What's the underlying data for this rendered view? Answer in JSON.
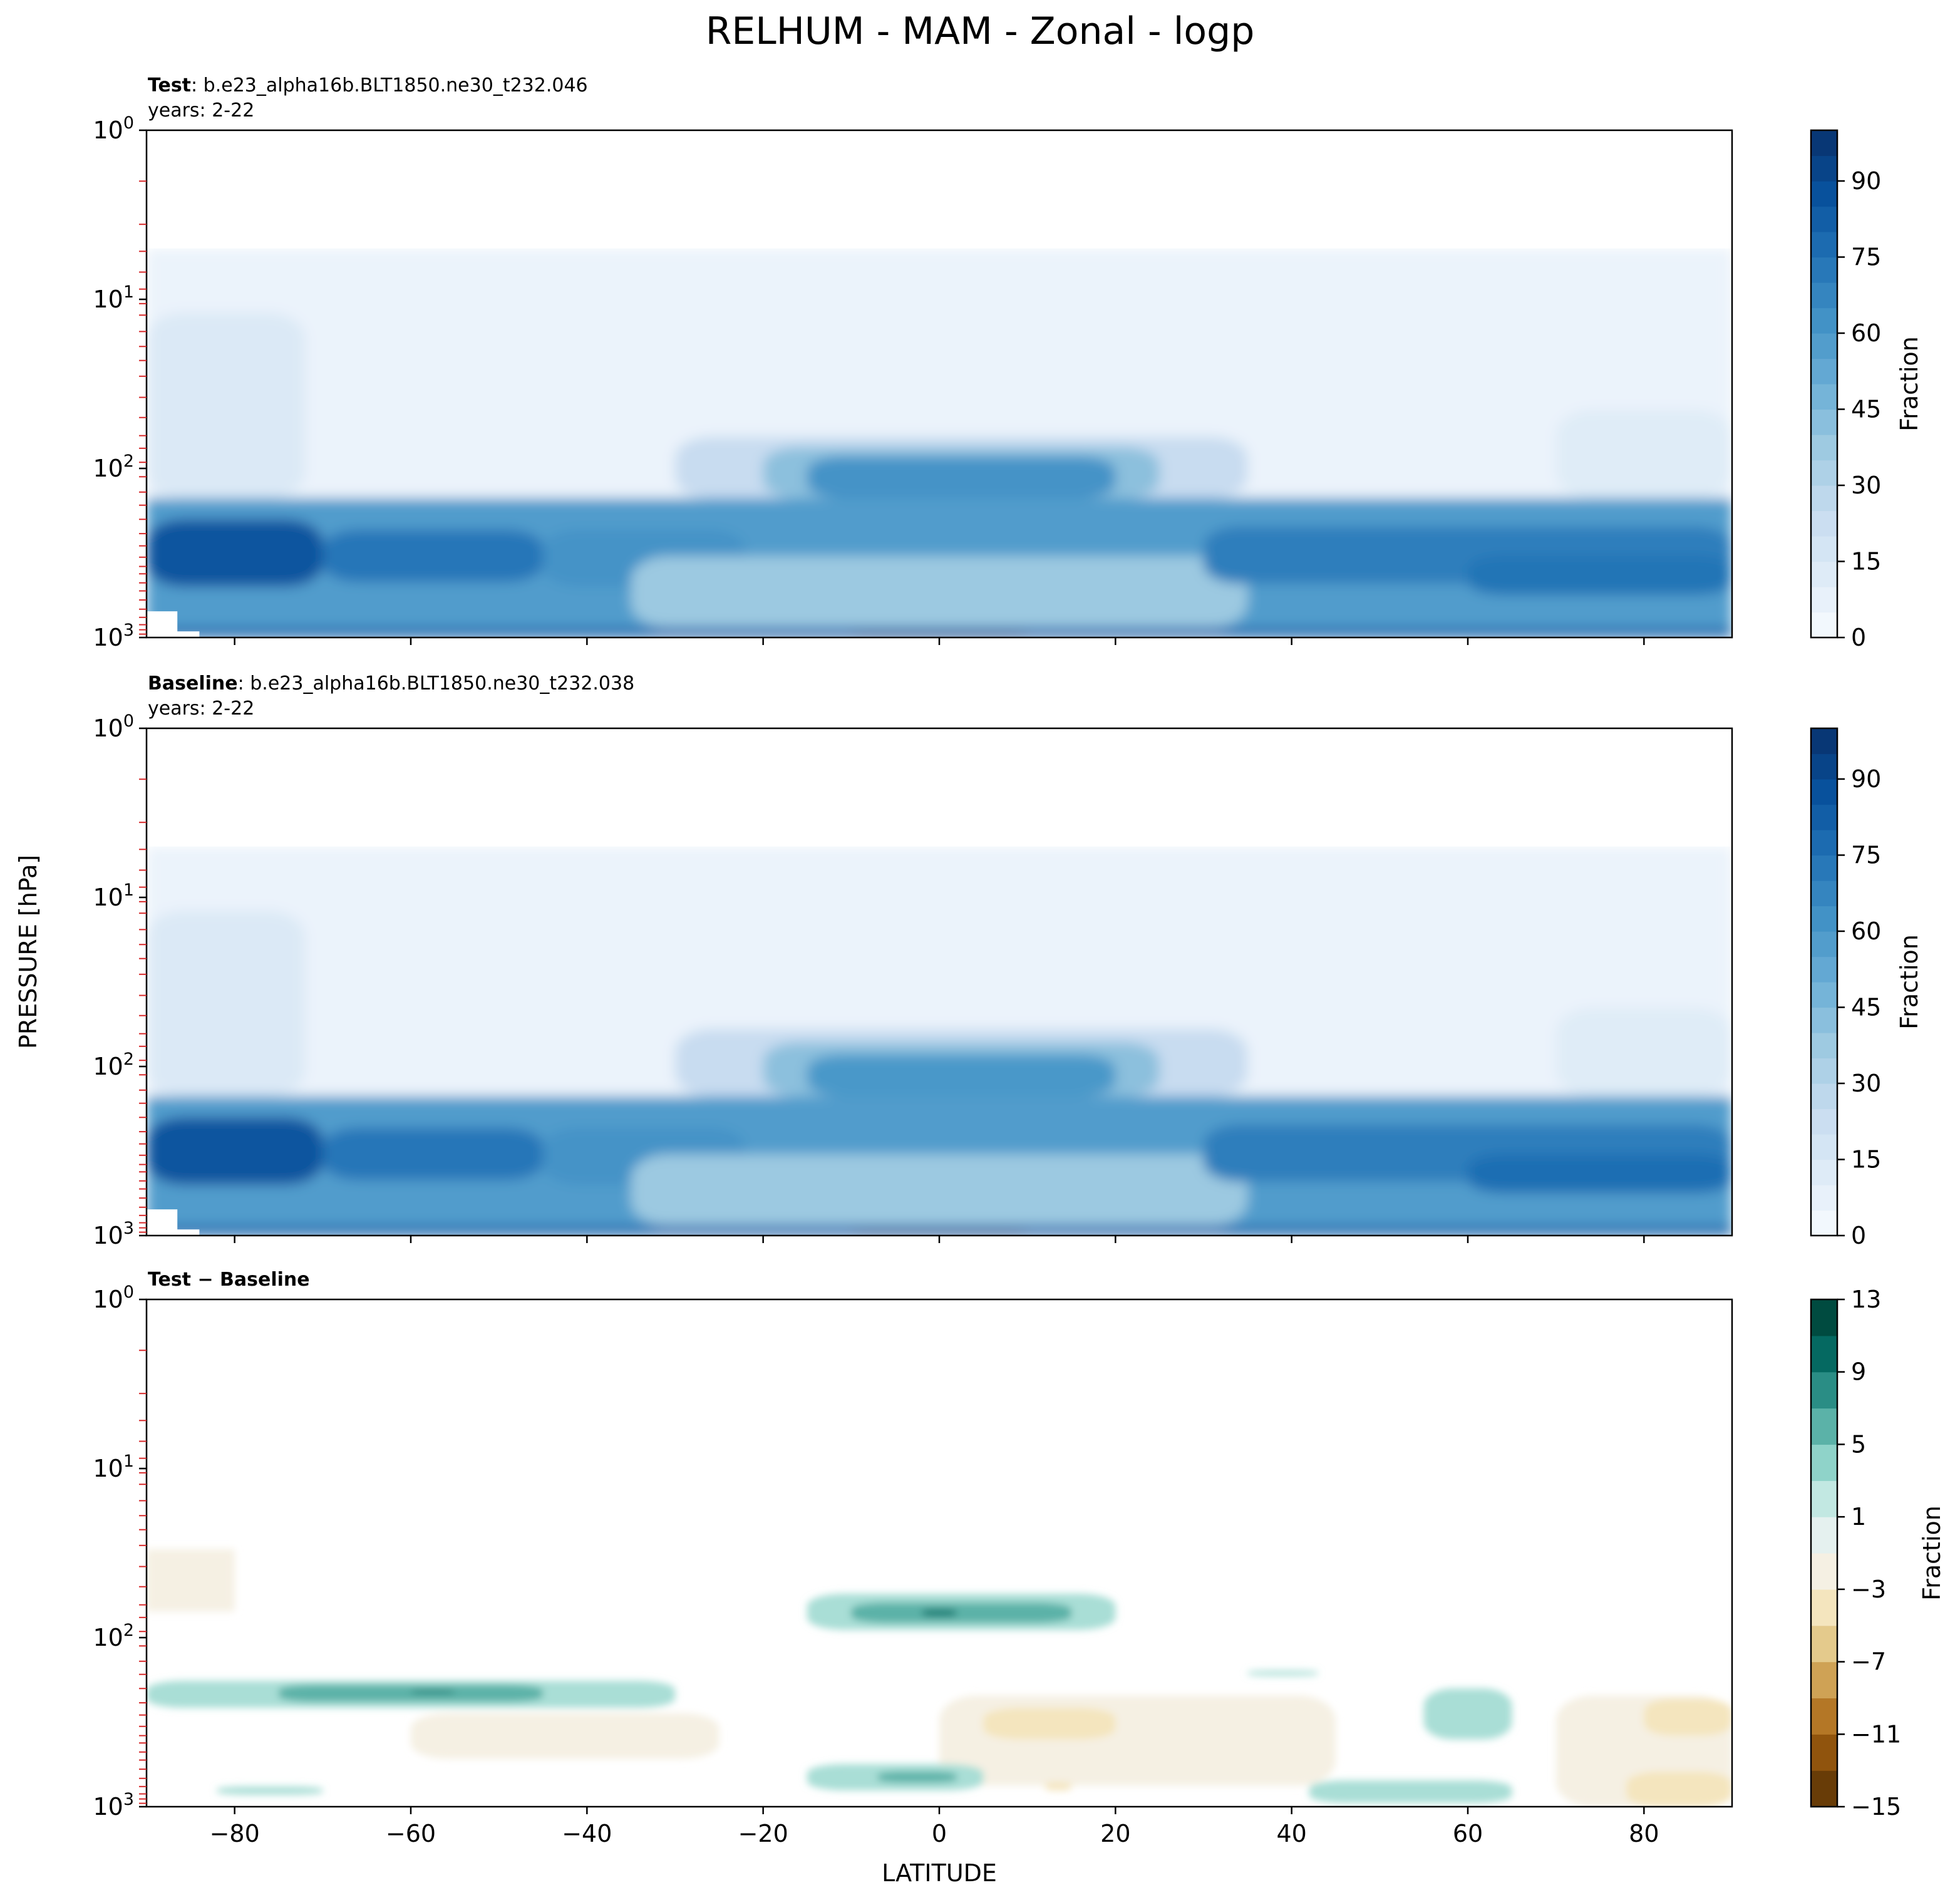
{
  "chart_data": {
    "type": "heatmap",
    "title": "RELHUM - MAM - Zonal - logp",
    "ylabel": "PRESSURE [hPa]",
    "xlabel": "LATITUDE",
    "x_ticks": [
      -80,
      -60,
      -40,
      -20,
      0,
      20,
      40,
      60,
      80
    ],
    "x_tick_labels": [
      "−80",
      "−60",
      "−40",
      "−20",
      "0",
      "20",
      "40",
      "60",
      "80"
    ],
    "xlim": [
      -90,
      90
    ],
    "y_scale": "log",
    "y_inverted": true,
    "ylim": [
      1000,
      1
    ],
    "y_ticks": [
      {
        "base": "10",
        "exp": "0"
      },
      {
        "base": "10",
        "exp": "1"
      },
      {
        "base": "10",
        "exp": "2"
      },
      {
        "base": "10",
        "exp": "3"
      }
    ],
    "level_marks_hpa": [
      2,
      3.6,
      5.2,
      6.9,
      8.7,
      10.6,
      12.4,
      15.5,
      19,
      23,
      28.5,
      38,
      50,
      64,
      76,
      92,
      112,
      138,
      165,
      200,
      243,
      287,
      335,
      380,
      420,
      475,
      530,
      600,
      680,
      760,
      840,
      900,
      955
    ],
    "data_top_hpa": 5,
    "panels": [
      {
        "id": "test",
        "label_bold": "Test",
        "label_rest": ": b.e23_alpha16b.BLT1850.ne30_t232.046",
        "years": "years: 2-22",
        "colormap": "Blues",
        "colorbar": {
          "label": "Fraction",
          "ticks": [
            "0",
            "15",
            "30",
            "45",
            "60",
            "75",
            "90"
          ],
          "min": 0,
          "max": 100,
          "levels": 20
        },
        "fields": [
          {
            "lat": [
              -90,
              90
            ],
            "p": [
              5,
              150
            ],
            "value": 6
          },
          {
            "lat": [
              -90,
              -72
            ],
            "p": [
              12,
              150
            ],
            "value": 14
          },
          {
            "lat": [
              70,
              90
            ],
            "p": [
              45,
              150
            ],
            "value": 12
          },
          {
            "lat": [
              -30,
              35
            ],
            "p": [
              65,
              150
            ],
            "value": 24
          },
          {
            "lat": [
              -20,
              25
            ],
            "p": [
              75,
              150
            ],
            "value": 42
          },
          {
            "lat": [
              -15,
              20
            ],
            "p": [
              85,
              150
            ],
            "value": 62
          },
          {
            "lat": [
              -90,
              90
            ],
            "p": [
              150,
              1000
            ],
            "value": 58
          },
          {
            "lat": [
              -90,
              -70
            ],
            "p": [
              200,
              500
            ],
            "value": 86
          },
          {
            "lat": [
              -70,
              -45
            ],
            "p": [
              230,
              470
            ],
            "value": 73
          },
          {
            "lat": [
              -45,
              -22
            ],
            "p": [
              230,
              500
            ],
            "value": 62
          },
          {
            "lat": [
              -30,
              30
            ],
            "p": [
              400,
              800
            ],
            "value": 30
          },
          {
            "lat": [
              -35,
              35
            ],
            "p": [
              330,
              870
            ],
            "value": 38
          },
          {
            "lat": [
              30,
              90
            ],
            "p": [
              220,
              480
            ],
            "value": 70
          },
          {
            "lat": [
              60,
              90
            ],
            "p": [
              330,
              560
            ],
            "value": 74
          },
          {
            "lat": [
              -90,
              90
            ],
            "p": [
              880,
              1000
            ],
            "value": 80
          },
          {
            "lat": [
              -10,
              10
            ],
            "p": [
              920,
              1000
            ],
            "value": 92
          }
        ],
        "blank": [
          {
            "lat": [
              -90,
              -86.5
            ],
            "p": [
              700,
              1000
            ]
          },
          {
            "lat": [
              -86.5,
              -84
            ],
            "p": [
              920,
              1000
            ]
          }
        ]
      },
      {
        "id": "baseline",
        "label_bold": "Baseline",
        "label_rest": ": b.e23_alpha16b.BLT1850.ne30_t232.038",
        "years": "years: 2-22",
        "colormap": "Blues",
        "colorbar": {
          "label": "Fraction",
          "ticks": [
            "0",
            "15",
            "30",
            "45",
            "60",
            "75",
            "90"
          ],
          "min": 0,
          "max": 100,
          "levels": 20
        },
        "fields": [
          {
            "lat": [
              -90,
              90
            ],
            "p": [
              5,
              150
            ],
            "value": 6
          },
          {
            "lat": [
              -90,
              -72
            ],
            "p": [
              12,
              150
            ],
            "value": 14
          },
          {
            "lat": [
              70,
              90
            ],
            "p": [
              45,
              150
            ],
            "value": 12
          },
          {
            "lat": [
              -30,
              35
            ],
            "p": [
              60,
              150
            ],
            "value": 24
          },
          {
            "lat": [
              -20,
              25
            ],
            "p": [
              72,
              150
            ],
            "value": 42
          },
          {
            "lat": [
              -15,
              20
            ],
            "p": [
              85,
              150
            ],
            "value": 60
          },
          {
            "lat": [
              -90,
              90
            ],
            "p": [
              150,
              1000
            ],
            "value": 58
          },
          {
            "lat": [
              -90,
              -70
            ],
            "p": [
              200,
              500
            ],
            "value": 86
          },
          {
            "lat": [
              -70,
              -45
            ],
            "p": [
              230,
              470
            ],
            "value": 73
          },
          {
            "lat": [
              -45,
              -22
            ],
            "p": [
              230,
              500
            ],
            "value": 62
          },
          {
            "lat": [
              -30,
              30
            ],
            "p": [
              400,
              800
            ],
            "value": 30
          },
          {
            "lat": [
              -35,
              35
            ],
            "p": [
              330,
              870
            ],
            "value": 38
          },
          {
            "lat": [
              30,
              90
            ],
            "p": [
              220,
              480
            ],
            "value": 70
          },
          {
            "lat": [
              60,
              90
            ],
            "p": [
              330,
              560
            ],
            "value": 76
          },
          {
            "lat": [
              -90,
              90
            ],
            "p": [
              880,
              1000
            ],
            "value": 80
          },
          {
            "lat": [
              -10,
              10
            ],
            "p": [
              920,
              1000
            ],
            "value": 92
          }
        ],
        "blank": [
          {
            "lat": [
              -90,
              -86.5
            ],
            "p": [
              700,
              1000
            ]
          },
          {
            "lat": [
              -86.5,
              -84
            ],
            "p": [
              920,
              1000
            ]
          }
        ]
      },
      {
        "id": "difference",
        "label_bold": "Test − Baseline",
        "label_rest": "",
        "years": "",
        "colormap": "BrBG",
        "colorbar": {
          "label": "Fraction",
          "ticks": [
            "13",
            "9",
            "5",
            "1",
            "−3",
            "−7",
            "−11",
            "−15"
          ],
          "min": -15,
          "max": 13,
          "levels": 14
        },
        "fields": [
          {
            "lat": [
              -90,
              -80
            ],
            "p": [
              30,
              70
            ],
            "value": -2
          },
          {
            "lat": [
              -15,
              20
            ],
            "p": [
              55,
              90
            ],
            "value": 3
          },
          {
            "lat": [
              -10,
              15
            ],
            "p": [
              62,
              82
            ],
            "value": 6
          },
          {
            "lat": [
              -2,
              2
            ],
            "p": [
              68,
              75
            ],
            "value": 9
          },
          {
            "lat": [
              -90,
              -30
            ],
            "p": [
              180,
              260
            ],
            "value": 3
          },
          {
            "lat": [
              -75,
              -45
            ],
            "p": [
              190,
              240
            ],
            "value": 6
          },
          {
            "lat": [
              -60,
              -55
            ],
            "p": [
              205,
              215
            ],
            "value": 9
          },
          {
            "lat": [
              -60,
              -25
            ],
            "p": [
              280,
              520
            ],
            "value": -2
          },
          {
            "lat": [
              0,
              45
            ],
            "p": [
              220,
              750
            ],
            "value": -2
          },
          {
            "lat": [
              5,
              20
            ],
            "p": [
              260,
              400
            ],
            "value": -4
          },
          {
            "lat": [
              12,
              15
            ],
            "p": [
              720,
              800
            ],
            "value": -4
          },
          {
            "lat": [
              -15,
              5
            ],
            "p": [
              560,
              800
            ],
            "value": 3
          },
          {
            "lat": [
              -7,
              2
            ],
            "p": [
              620,
              720
            ],
            "value": 6
          },
          {
            "lat": [
              55,
              65
            ],
            "p": [
              200,
              400
            ],
            "value": 3
          },
          {
            "lat": [
              70,
              90
            ],
            "p": [
              220,
              1000
            ],
            "value": -2
          },
          {
            "lat": [
              80,
              90
            ],
            "p": [
              230,
              380
            ],
            "value": -4
          },
          {
            "lat": [
              78,
              90
            ],
            "p": [
              620,
              1000
            ],
            "value": -4
          },
          {
            "lat": [
              42,
              65
            ],
            "p": [
              700,
              950
            ],
            "value": 3
          },
          {
            "lat": [
              35,
              43
            ],
            "p": [
              157,
              168
            ],
            "value": 3
          },
          {
            "lat": [
              -82,
              -70
            ],
            "p": [
              760,
              850
            ],
            "value": 3
          }
        ],
        "blank": []
      }
    ]
  },
  "colors": {
    "axes": "#000000",
    "level_marks": "#d62728",
    "blues": [
      "#f7fbff",
      "#deebf7",
      "#c6dbef",
      "#9ecae1",
      "#6baed6",
      "#4292c6",
      "#2171b5",
      "#08519c",
      "#08306b"
    ],
    "brbg": [
      "#543005",
      "#8c510a",
      "#bf812d",
      "#dfc27d",
      "#f6e8c3",
      "#f5f5f5",
      "#c7eae5",
      "#80cdc1",
      "#35978f",
      "#01665e",
      "#003c30"
    ]
  }
}
